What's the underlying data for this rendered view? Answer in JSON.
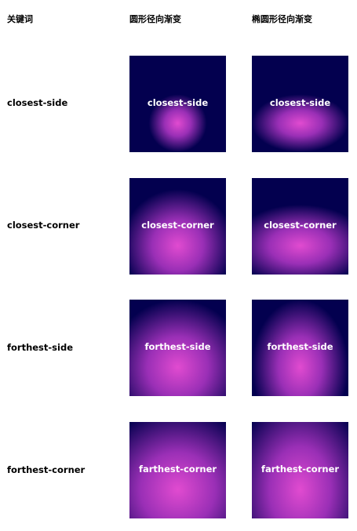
{
  "headers": {
    "keyword": "关键词",
    "circle": "圆形径向渐变",
    "ellipse": "椭圆形径向渐变"
  },
  "colors": {
    "background": "#03004f",
    "center": "#e14bd0",
    "mid": "#9a2fb6",
    "text": "#ffffff"
  },
  "rows": [
    {
      "keyword": "closest-side",
      "circle_text": "closest-side",
      "ellipse_text": "closest-side"
    },
    {
      "keyword": "closest-corner",
      "circle_text": "closest-corner",
      "ellipse_text": "closest-corner"
    },
    {
      "keyword": "forthest-side",
      "circle_text": "forthest-side",
      "ellipse_text": "forthest-side"
    },
    {
      "keyword": "forthest-corner",
      "circle_text": "farthest-corner",
      "ellipse_text": "farthest-corner"
    }
  ]
}
